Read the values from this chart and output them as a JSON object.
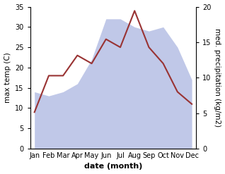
{
  "months": [
    "Jan",
    "Feb",
    "Mar",
    "Apr",
    "May",
    "Jun",
    "Jul",
    "Aug",
    "Sep",
    "Oct",
    "Nov",
    "Dec"
  ],
  "temp": [
    9,
    18,
    18,
    23,
    21,
    27,
    25,
    34,
    25,
    21,
    14,
    11
  ],
  "precip": [
    14,
    13,
    14,
    16,
    22,
    32,
    32,
    30,
    29,
    30,
    25,
    17
  ],
  "temp_color": "#993333",
  "precip_fill_color": "#c0c8e8",
  "ylim_left": [
    0,
    35
  ],
  "ylim_right": [
    0,
    20
  ],
  "yticks_left": [
    0,
    5,
    10,
    15,
    20,
    25,
    30,
    35
  ],
  "yticks_right": [
    0,
    5,
    10,
    15,
    20
  ],
  "xlabel": "date (month)",
  "ylabel_left": "max temp (C)",
  "ylabel_right": "med. precipitation (kg/m2)",
  "xlabel_fontsize": 8,
  "ylabel_fontsize": 7.5,
  "tick_fontsize": 7
}
